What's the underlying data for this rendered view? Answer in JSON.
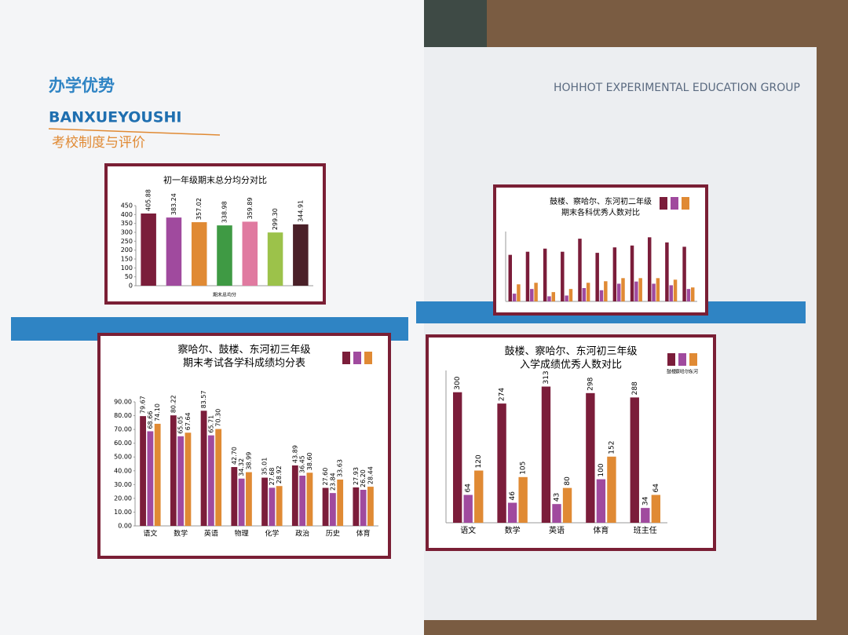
{
  "header": {
    "title": "办学优势",
    "subtitle": "BANXUEYOUSHI",
    "section": "考校制度与评价",
    "group": "HOHHOT EXPERIMENTAL EDUCATION GROUP"
  },
  "chart_data": [
    {
      "type": "bar",
      "title": [
        "初一年级期末总分均分对比"
      ],
      "x_label": "期末总均分",
      "categories": [
        null,
        null,
        null,
        null,
        null,
        null,
        null
      ],
      "values": [
        405.88,
        383.24,
        357.02,
        338.98,
        359.89,
        299.3,
        344.91
      ],
      "value_labels": [
        "405.88",
        "383.24",
        "357.02",
        "338.98",
        "359.89",
        "299.30",
        "344.91"
      ],
      "colors": [
        "#7b1d3a",
        "#a04a9e",
        "#e08a34",
        "#3f9a44",
        "#e07aa0",
        "#9cc24a",
        "#4a2028"
      ],
      "ylim": [
        0,
        450
      ],
      "yticks": [
        0,
        50,
        100,
        150,
        200,
        250,
        300,
        350,
        400,
        450
      ]
    },
    {
      "type": "bar",
      "title": [
        "察哈尔、鼓楼、东河初三年级",
        "期末考试各学科成绩均分表"
      ],
      "categories": [
        "语文",
        "数学",
        "英语",
        "物理",
        "化学",
        "政治",
        "历史",
        "体育"
      ],
      "series": [
        {
          "color": "#7b1d3a",
          "values": [
            79.67,
            80.22,
            83.57,
            42.7,
            35.01,
            43.89,
            27.6,
            27.93
          ],
          "value_labels": [
            "79.67",
            "80.22",
            "83.57",
            "42.70",
            "35.01",
            "43.89",
            "27.60",
            "27.93"
          ]
        },
        {
          "color": "#a04a9e",
          "values": [
            68.66,
            65.05,
            65.71,
            34.32,
            27.68,
            36.45,
            23.84,
            26.2
          ],
          "value_labels": [
            "68.66",
            "65.05",
            "65.71",
            "34.32",
            "27.68",
            "36.45",
            "23.84",
            "26.20"
          ]
        },
        {
          "color": "#e08a34",
          "values": [
            74.1,
            67.64,
            70.3,
            38.99,
            28.92,
            38.6,
            33.63,
            28.44
          ],
          "value_labels": [
            "74.10",
            "67.64",
            "70.30",
            "38.99",
            "28.92",
            "38.60",
            "33.63",
            "28.44"
          ]
        }
      ],
      "ylim": [
        0,
        90
      ],
      "yticks": [
        {
          "value": 0,
          "label": "0.00"
        },
        {
          "value": 10,
          "label": "10.00"
        },
        {
          "value": 20,
          "label": "20.00"
        },
        {
          "value": 30,
          "label": "30.00"
        },
        {
          "value": 40,
          "label": "40.00"
        },
        {
          "value": 50,
          "label": "50.00"
        },
        {
          "value": 60,
          "label": "60.00"
        },
        {
          "value": 70,
          "label": "70.00"
        },
        {
          "value": 80,
          "label": "80.00"
        },
        {
          "value": 90,
          "label": "90.00"
        }
      ]
    },
    {
      "type": "bar",
      "title": [
        "鼓楼、察哈尔、东河初三年级",
        "入学成绩优秀人数对比"
      ],
      "categories": [
        "语文",
        "数学",
        "英语",
        "体育",
        "班主任"
      ],
      "series": [
        {
          "name": "鼓楼",
          "color": "#7b1d3a",
          "values": [
            300,
            274,
            313,
            298,
            288
          ]
        },
        {
          "name": "察哈尔",
          "color": "#a04a9e",
          "values": [
            64,
            46,
            43,
            100,
            34
          ]
        },
        {
          "name": "东河",
          "color": "#e08a34",
          "values": [
            120,
            105,
            80,
            152,
            64
          ]
        }
      ],
      "ylim": [
        0,
        350
      ]
    },
    {
      "type": "bar",
      "title": [
        "鼓楼、察哈尔、东河初二年级",
        "期末各科优秀人数对比"
      ],
      "categories": [
        null,
        null,
        null,
        null,
        null,
        null,
        null,
        null,
        null,
        null,
        null
      ],
      "series": [
        {
          "color": "#7b1d3a",
          "values": [
            300,
            320,
            340,
            320,
            404,
            313,
            348,
            360,
            413,
            380,
            352
          ]
        },
        {
          "color": "#a04a9e",
          "values": [
            50,
            80,
            33,
            38,
            86,
            72,
            114,
            128,
            114,
            104,
            80
          ]
        },
        {
          "color": "#e08a34",
          "values": [
            110,
            120,
            60,
            80,
            120,
            130,
            150,
            150,
            150,
            140,
            90
          ]
        }
      ],
      "ylim": [
        0,
        450
      ]
    }
  ]
}
